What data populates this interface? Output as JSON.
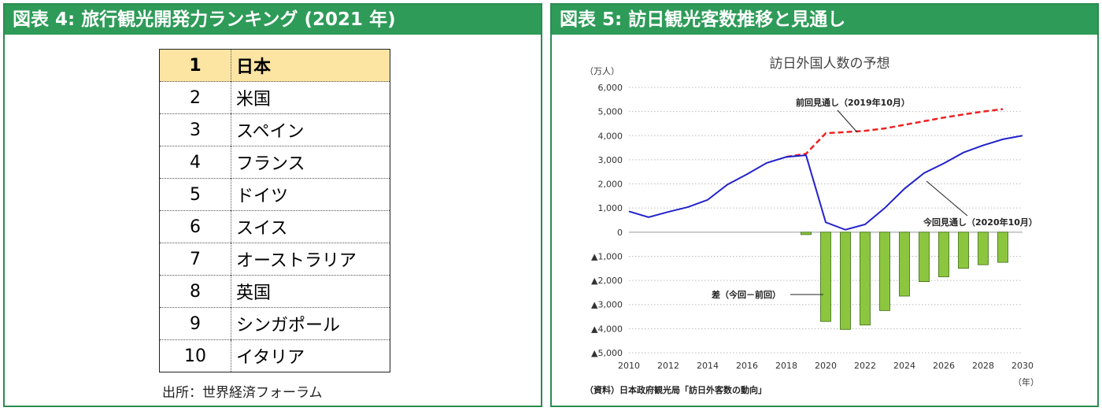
{
  "panel4": {
    "header": "図表 4: 旅行観光開発力ランキング (2021 年)",
    "ranking": [
      {
        "rank": "1",
        "country": "日本"
      },
      {
        "rank": "2",
        "country": "米国"
      },
      {
        "rank": "3",
        "country": "スペイン"
      },
      {
        "rank": "4",
        "country": "フランス"
      },
      {
        "rank": "5",
        "country": "ドイツ"
      },
      {
        "rank": "6",
        "country": "スイス"
      },
      {
        "rank": "7",
        "country": "オーストラリア"
      },
      {
        "rank": "8",
        "country": "英国"
      },
      {
        "rank": "9",
        "country": "シンガポール"
      },
      {
        "rank": "10",
        "country": "イタリア"
      }
    ],
    "source": "出所：世界経済フォーラム"
  },
  "panel5": {
    "header": "図表 5: 訪日観光客数推移と見通し",
    "source": "（資料）日本政府観光局「訪日外客数の動向」"
  },
  "chart_data": {
    "type": "line",
    "title": "訪日外国人数の予想",
    "yunit": "（万人）",
    "xunit": "（年）",
    "ylim": [
      -5000,
      6000
    ],
    "yticks": [
      6000,
      5000,
      4000,
      3000,
      2000,
      1000,
      0,
      -1000,
      -2000,
      -3000,
      -4000,
      -5000
    ],
    "ytick_labels": [
      "6,000",
      "5,000",
      "4,000",
      "3,000",
      "2,000",
      "1,000",
      "0",
      "▲1,000",
      "▲2,000",
      "▲3,000",
      "▲4,000",
      "▲5,000"
    ],
    "xlim": [
      2010,
      2030
    ],
    "xticks": [
      2010,
      2012,
      2014,
      2016,
      2018,
      2020,
      2022,
      2024,
      2026,
      2028,
      2030
    ],
    "grid": "horizontal dotted",
    "colors": {
      "previous": "#ee2222",
      "current": "#2222cc",
      "diff": "#8cc63f",
      "diff_border": "#3a6b10"
    },
    "series": [
      {
        "name": "前回見通し（2019年10月）",
        "style": "dashed",
        "x": [
          2018,
          2019,
          2020,
          2021,
          2022,
          2023,
          2024,
          2025,
          2026,
          2027,
          2028,
          2029
        ],
        "y": [
          3120,
          3250,
          4100,
          4150,
          4200,
          4300,
          4450,
          4600,
          4750,
          4880,
          5000,
          5100
        ]
      },
      {
        "name": "今回見通し（2020年10月）",
        "style": "solid",
        "x": [
          2010,
          2011,
          2012,
          2013,
          2014,
          2015,
          2016,
          2017,
          2018,
          2019,
          2020,
          2021,
          2022,
          2023,
          2024,
          2025,
          2026,
          2027,
          2028,
          2029,
          2030
        ],
        "y": [
          860,
          620,
          840,
          1040,
          1340,
          1970,
          2400,
          2870,
          3120,
          3190,
          410,
          100,
          320,
          1000,
          1800,
          2450,
          2850,
          3300,
          3600,
          3850,
          4000
        ]
      },
      {
        "name": "差（今回－前回）",
        "type": "bar",
        "x": [
          2019,
          2020,
          2021,
          2022,
          2023,
          2024,
          2025,
          2026,
          2027,
          2028,
          2029
        ],
        "y": [
          -100,
          -3700,
          -4030,
          -3850,
          -3250,
          -2650,
          -2050,
          -1850,
          -1500,
          -1350,
          -1250
        ]
      }
    ]
  }
}
